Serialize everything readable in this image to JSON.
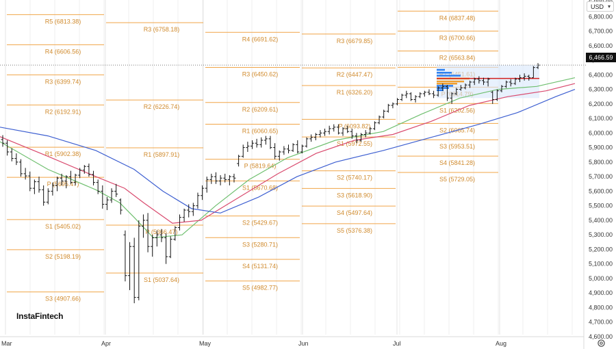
{
  "currency_selector": {
    "label": "USD"
  },
  "last_price_label": "6,466.59",
  "logo": {
    "text": "InstaFintech"
  },
  "icons": {
    "settings": "settings-gear-icon",
    "dropdown": "chevron-down-icon"
  },
  "colors": {
    "pivot": "#f0a447",
    "pivot_label": "#d08a2c",
    "ma_fast": "#6fbf6f",
    "ma_mid": "#d94a6e",
    "ma_slow": "#3d5fd1",
    "price_bar": "#111111",
    "volume_profile": "#2a7ff0",
    "volume_profile_warm": "#f0a030"
  },
  "chart_data": {
    "type": "ohlc-bar",
    "y_axis_ticks": [
      "6,900.00",
      "6,800.00",
      "6,700.00",
      "6,600.00",
      "6,500.00",
      "6,400.00",
      "6,300.00",
      "6,200.00",
      "6,100.00",
      "6,000.00",
      "5,900.00",
      "5,800.00",
      "5,700.00",
      "5,600.00",
      "5,500.00",
      "5,400.00",
      "5,300.00",
      "5,200.00",
      "5,100.00",
      "5,000.00",
      "4,900.00",
      "4,800.00",
      "4,700.00",
      "4,600.00"
    ],
    "ylim": [
      4600,
      6900
    ],
    "x_axis_labels": [
      "Mar",
      "Apr",
      "May",
      "Jun",
      "Jul",
      "Aug"
    ],
    "last_price": 6466.59,
    "grid": "vertical monthly + week gridlines",
    "pivot_periods": [
      {
        "levels": [
          {
            "label": "R5 (6813.38)",
            "value": 6813.38
          },
          {
            "label": "R4 (6606.56)",
            "value": 6606.56
          },
          {
            "label": "R3 (6399.74)",
            "value": 6399.74
          },
          {
            "label": "R2 (6192.91)",
            "value": 6192.91
          },
          {
            "label": "R1 (5902.38)",
            "value": 5902.38
          },
          {
            "label": "P (5695.47)",
            "value": 5695.47
          },
          {
            "label": "S1 (5405.02)",
            "value": 5405.02
          },
          {
            "label": "S2 (5198.19)",
            "value": 5198.19
          },
          {
            "label": "S3 (4907.66)",
            "value": 4907.66
          }
        ]
      },
      {
        "levels": [
          {
            "label": "R3 (6758.18)",
            "value": 6758.18
          },
          {
            "label": "R2 (6226.74)",
            "value": 6226.74
          },
          {
            "label": "R1 (5897.91)",
            "value": 5897.91
          },
          {
            "label": "P (5366.47)",
            "value": 5366.47
          },
          {
            "label": "S1 (5037.64)",
            "value": 5037.64
          }
        ]
      },
      {
        "levels": [
          {
            "label": "R4 (6691.62)",
            "value": 6691.62
          },
          {
            "label": "R3 (6450.62)",
            "value": 6450.62
          },
          {
            "label": "R2 (6209.61)",
            "value": 6209.61
          },
          {
            "label": "R1 (6060.65)",
            "value": 6060.65
          },
          {
            "label": "P (5819.64)",
            "value": 5819.64
          },
          {
            "label": "S1 (5670.68)",
            "value": 5670.68
          },
          {
            "label": "S2 (5429.67)",
            "value": 5429.67
          },
          {
            "label": "S3 (5280.71)",
            "value": 5280.71
          },
          {
            "label": "S4 (5131.74)",
            "value": 5131.74
          },
          {
            "label": "S5 (4982.77)",
            "value": 4982.77
          }
        ]
      },
      {
        "levels": [
          {
            "label": "R3 (6679.85)",
            "value": 6679.85
          },
          {
            "label": "R2 (6447.47)",
            "value": 6447.47
          },
          {
            "label": "R1 (6326.20)",
            "value": 6326.2
          },
          {
            "label": "P (6093.82)",
            "value": 6093.82
          },
          {
            "label": "S1 (5972.55)",
            "value": 5972.55
          },
          {
            "label": "S2 (5740.17)",
            "value": 5740.17
          },
          {
            "label": "S3 (5618.90)",
            "value": 5618.9
          },
          {
            "label": "S4 (5497.64)",
            "value": 5497.64
          },
          {
            "label": "S5 (5376.38)",
            "value": 5376.38
          }
        ]
      },
      {
        "levels": [
          {
            "label": "R4 (6837.48)",
            "value": 6837.48
          },
          {
            "label": "R3 (6700.66)",
            "value": 6700.66
          },
          {
            "label": "R2 (6563.84)",
            "value": 6563.84
          },
          {
            "label": "R1 (6451.61)",
            "value": 6451.61
          },
          {
            "label": "P (6314.79)",
            "value": 6314.79
          },
          {
            "label": "S1 (6202.56)",
            "value": 6202.56
          },
          {
            "label": "S2 (6065.74)",
            "value": 6065.74
          },
          {
            "label": "S3 (5953.51)",
            "value": 5953.51
          },
          {
            "label": "S4 (5841.28)",
            "value": 5841.28
          },
          {
            "label": "S5 (5729.05)",
            "value": 5729.05
          }
        ]
      }
    ],
    "price_bars": [
      [
        5955,
        5985,
        5905,
        5930
      ],
      [
        5930,
        5950,
        5845,
        5870
      ],
      [
        5870,
        5895,
        5805,
        5825
      ],
      [
        5825,
        5860,
        5780,
        5800
      ],
      [
        5800,
        5820,
        5700,
        5720
      ],
      [
        5720,
        5760,
        5680,
        5705
      ],
      [
        5705,
        5735,
        5600,
        5620
      ],
      [
        5620,
        5680,
        5580,
        5665
      ],
      [
        5665,
        5700,
        5590,
        5610
      ],
      [
        5610,
        5640,
        5500,
        5525
      ],
      [
        5525,
        5620,
        5510,
        5600
      ],
      [
        5600,
        5660,
        5570,
        5640
      ],
      [
        5640,
        5700,
        5600,
        5690
      ],
      [
        5690,
        5720,
        5640,
        5670
      ],
      [
        5670,
        5710,
        5620,
        5700
      ],
      [
        5700,
        5740,
        5650,
        5660
      ],
      [
        5660,
        5720,
        5640,
        5710
      ],
      [
        5710,
        5760,
        5690,
        5745
      ],
      [
        5745,
        5780,
        5720,
        5770
      ],
      [
        5770,
        5790,
        5700,
        5715
      ],
      [
        5715,
        5740,
        5640,
        5660
      ],
      [
        5660,
        5680,
        5580,
        5600
      ],
      [
        5600,
        5640,
        5480,
        5510
      ],
      [
        5510,
        5560,
        5470,
        5540
      ],
      [
        5540,
        5620,
        5520,
        5600
      ],
      [
        5600,
        5650,
        5560,
        5580
      ],
      [
        5540,
        5550,
        5440,
        5470
      ],
      [
        5300,
        5330,
        4980,
        5020
      ],
      [
        5020,
        5250,
        4920,
        5220
      ],
      [
        5220,
        5280,
        4830,
        4870
      ],
      [
        4870,
        5400,
        4850,
        5360
      ],
      [
        5360,
        5440,
        5280,
        5400
      ],
      [
        5400,
        5450,
        5180,
        5220
      ],
      [
        5220,
        5300,
        5150,
        5280
      ],
      [
        5280,
        5330,
        5220,
        5300
      ],
      [
        5300,
        5340,
        5250,
        5280
      ],
      [
        5280,
        5310,
        5100,
        5150
      ],
      [
        5150,
        5290,
        5140,
        5270
      ],
      [
        5270,
        5360,
        5260,
        5350
      ],
      [
        5350,
        5440,
        5330,
        5420
      ],
      [
        5420,
        5480,
        5390,
        5470
      ],
      [
        5470,
        5510,
        5420,
        5460
      ],
      [
        5460,
        5520,
        5430,
        5500
      ],
      [
        5500,
        5590,
        5480,
        5570
      ],
      [
        5570,
        5640,
        5540,
        5620
      ],
      [
        5620,
        5700,
        5590,
        5680
      ],
      [
        5680,
        5720,
        5650,
        5700
      ],
      [
        5700,
        5730,
        5650,
        5670
      ],
      [
        5670,
        5710,
        5640,
        5690
      ],
      [
        5690,
        5720,
        5660,
        5680
      ],
      [
        5680,
        5710,
        5640,
        5700
      ],
      [
        5700,
        5720,
        5660,
        5690
      ],
      [
        5790,
        5850,
        5770,
        5840
      ],
      [
        5840,
        5920,
        5830,
        5900
      ],
      [
        5900,
        5940,
        5870,
        5910
      ],
      [
        5910,
        5950,
        5890,
        5930
      ],
      [
        5930,
        5960,
        5900,
        5920
      ],
      [
        5920,
        5970,
        5900,
        5950
      ],
      [
        5950,
        5980,
        5920,
        5960
      ],
      [
        5960,
        5980,
        5890,
        5900
      ],
      [
        5900,
        5930,
        5820,
        5840
      ],
      [
        5840,
        5880,
        5810,
        5870
      ],
      [
        5870,
        5910,
        5850,
        5890
      ],
      [
        5890,
        5920,
        5860,
        5880
      ],
      [
        5880,
        5930,
        5870,
        5920
      ],
      [
        5920,
        5950,
        5860,
        5870
      ],
      [
        5870,
        5920,
        5860,
        5910
      ],
      [
        5910,
        5970,
        5900,
        5960
      ],
      [
        5960,
        5990,
        5940,
        5970
      ],
      [
        5970,
        6000,
        5950,
        5990
      ],
      [
        5990,
        6020,
        5970,
        6000
      ],
      [
        6000,
        6030,
        5980,
        6010
      ],
      [
        6010,
        6050,
        5990,
        6030
      ],
      [
        6030,
        6060,
        6010,
        6040
      ],
      [
        6040,
        6060,
        5990,
        6000
      ],
      [
        6000,
        6040,
        5980,
        6030
      ],
      [
        6030,
        6050,
        6000,
        6010
      ],
      [
        6010,
        6030,
        5960,
        5980
      ],
      [
        5980,
        6000,
        5930,
        5950
      ],
      [
        5950,
        6000,
        5940,
        5990
      ],
      [
        5990,
        6020,
        5970,
        6000
      ],
      [
        6000,
        6040,
        5990,
        6030
      ],
      [
        6030,
        6080,
        6020,
        6070
      ],
      [
        6070,
        6120,
        6060,
        6110
      ],
      [
        6110,
        6160,
        6100,
        6150
      ],
      [
        6150,
        6200,
        6140,
        6190
      ],
      [
        6190,
        6210,
        6170,
        6200
      ],
      [
        6200,
        6240,
        6190,
        6230
      ],
      [
        6230,
        6270,
        6220,
        6260
      ],
      [
        6260,
        6290,
        6240,
        6270
      ],
      [
        6270,
        6280,
        6220,
        6230
      ],
      [
        6230,
        6260,
        6210,
        6250
      ],
      [
        6250,
        6280,
        6240,
        6270
      ],
      [
        6270,
        6290,
        6250,
        6280
      ],
      [
        6280,
        6300,
        6260,
        6270
      ],
      [
        6270,
        6290,
        6240,
        6260
      ],
      [
        6260,
        6320,
        6250,
        6310
      ],
      [
        6310,
        6340,
        6290,
        6320
      ],
      [
        6320,
        6330,
        6220,
        6240
      ],
      [
        6240,
        6280,
        6200,
        6270
      ],
      [
        6270,
        6310,
        6260,
        6300
      ],
      [
        6300,
        6330,
        6290,
        6310
      ],
      [
        6310,
        6340,
        6300,
        6330
      ],
      [
        6330,
        6360,
        6310,
        6350
      ],
      [
        6350,
        6380,
        6330,
        6370
      ],
      [
        6370,
        6390,
        6340,
        6360
      ],
      [
        6360,
        6380,
        6330,
        6350
      ],
      [
        6350,
        6380,
        6320,
        6370
      ],
      [
        6280,
        6290,
        6200,
        6230
      ],
      [
        6230,
        6300,
        6220,
        6290
      ],
      [
        6290,
        6330,
        6280,
        6320
      ],
      [
        6320,
        6360,
        6310,
        6350
      ],
      [
        6350,
        6370,
        6320,
        6340
      ],
      [
        6340,
        6380,
        6330,
        6370
      ],
      [
        6370,
        6400,
        6350,
        6380
      ],
      [
        6380,
        6410,
        6360,
        6390
      ],
      [
        6390,
        6400,
        6360,
        6380
      ],
      [
        6380,
        6460,
        6380,
        6450
      ],
      [
        6450,
        6480,
        6440,
        6466.59
      ]
    ],
    "moving_averages": [
      {
        "role": "fast",
        "values": [
          [
            0,
            5940
          ],
          [
            10,
            5750
          ],
          [
            20,
            5610
          ],
          [
            25,
            5520
          ],
          [
            28,
            5420
          ],
          [
            32,
            5280
          ],
          [
            38,
            5300
          ],
          [
            45,
            5500
          ],
          [
            52,
            5680
          ],
          [
            60,
            5830
          ],
          [
            70,
            5950
          ],
          [
            80,
            6010
          ],
          [
            88,
            6130
          ],
          [
            96,
            6240
          ],
          [
            104,
            6300
          ],
          [
            112,
            6320
          ],
          [
            120,
            6380
          ]
        ]
      },
      {
        "role": "mid",
        "values": [
          [
            0,
            5975
          ],
          [
            10,
            5840
          ],
          [
            20,
            5700
          ],
          [
            26,
            5620
          ],
          [
            30,
            5520
          ],
          [
            36,
            5380
          ],
          [
            42,
            5400
          ],
          [
            50,
            5560
          ],
          [
            58,
            5720
          ],
          [
            66,
            5860
          ],
          [
            74,
            5950
          ],
          [
            82,
            5990
          ],
          [
            90,
            6080
          ],
          [
            98,
            6190
          ],
          [
            106,
            6250
          ],
          [
            114,
            6290
          ],
          [
            120,
            6340
          ]
        ]
      },
      {
        "role": "slow",
        "values": [
          [
            0,
            6040
          ],
          [
            10,
            5980
          ],
          [
            20,
            5880
          ],
          [
            28,
            5750
          ],
          [
            34,
            5600
          ],
          [
            40,
            5480
          ],
          [
            46,
            5450
          ],
          [
            54,
            5560
          ],
          [
            62,
            5700
          ],
          [
            70,
            5800
          ],
          [
            80,
            5880
          ],
          [
            90,
            5970
          ],
          [
            100,
            6060
          ],
          [
            108,
            6140
          ],
          [
            116,
            6250
          ],
          [
            120,
            6300
          ]
        ]
      }
    ]
  }
}
